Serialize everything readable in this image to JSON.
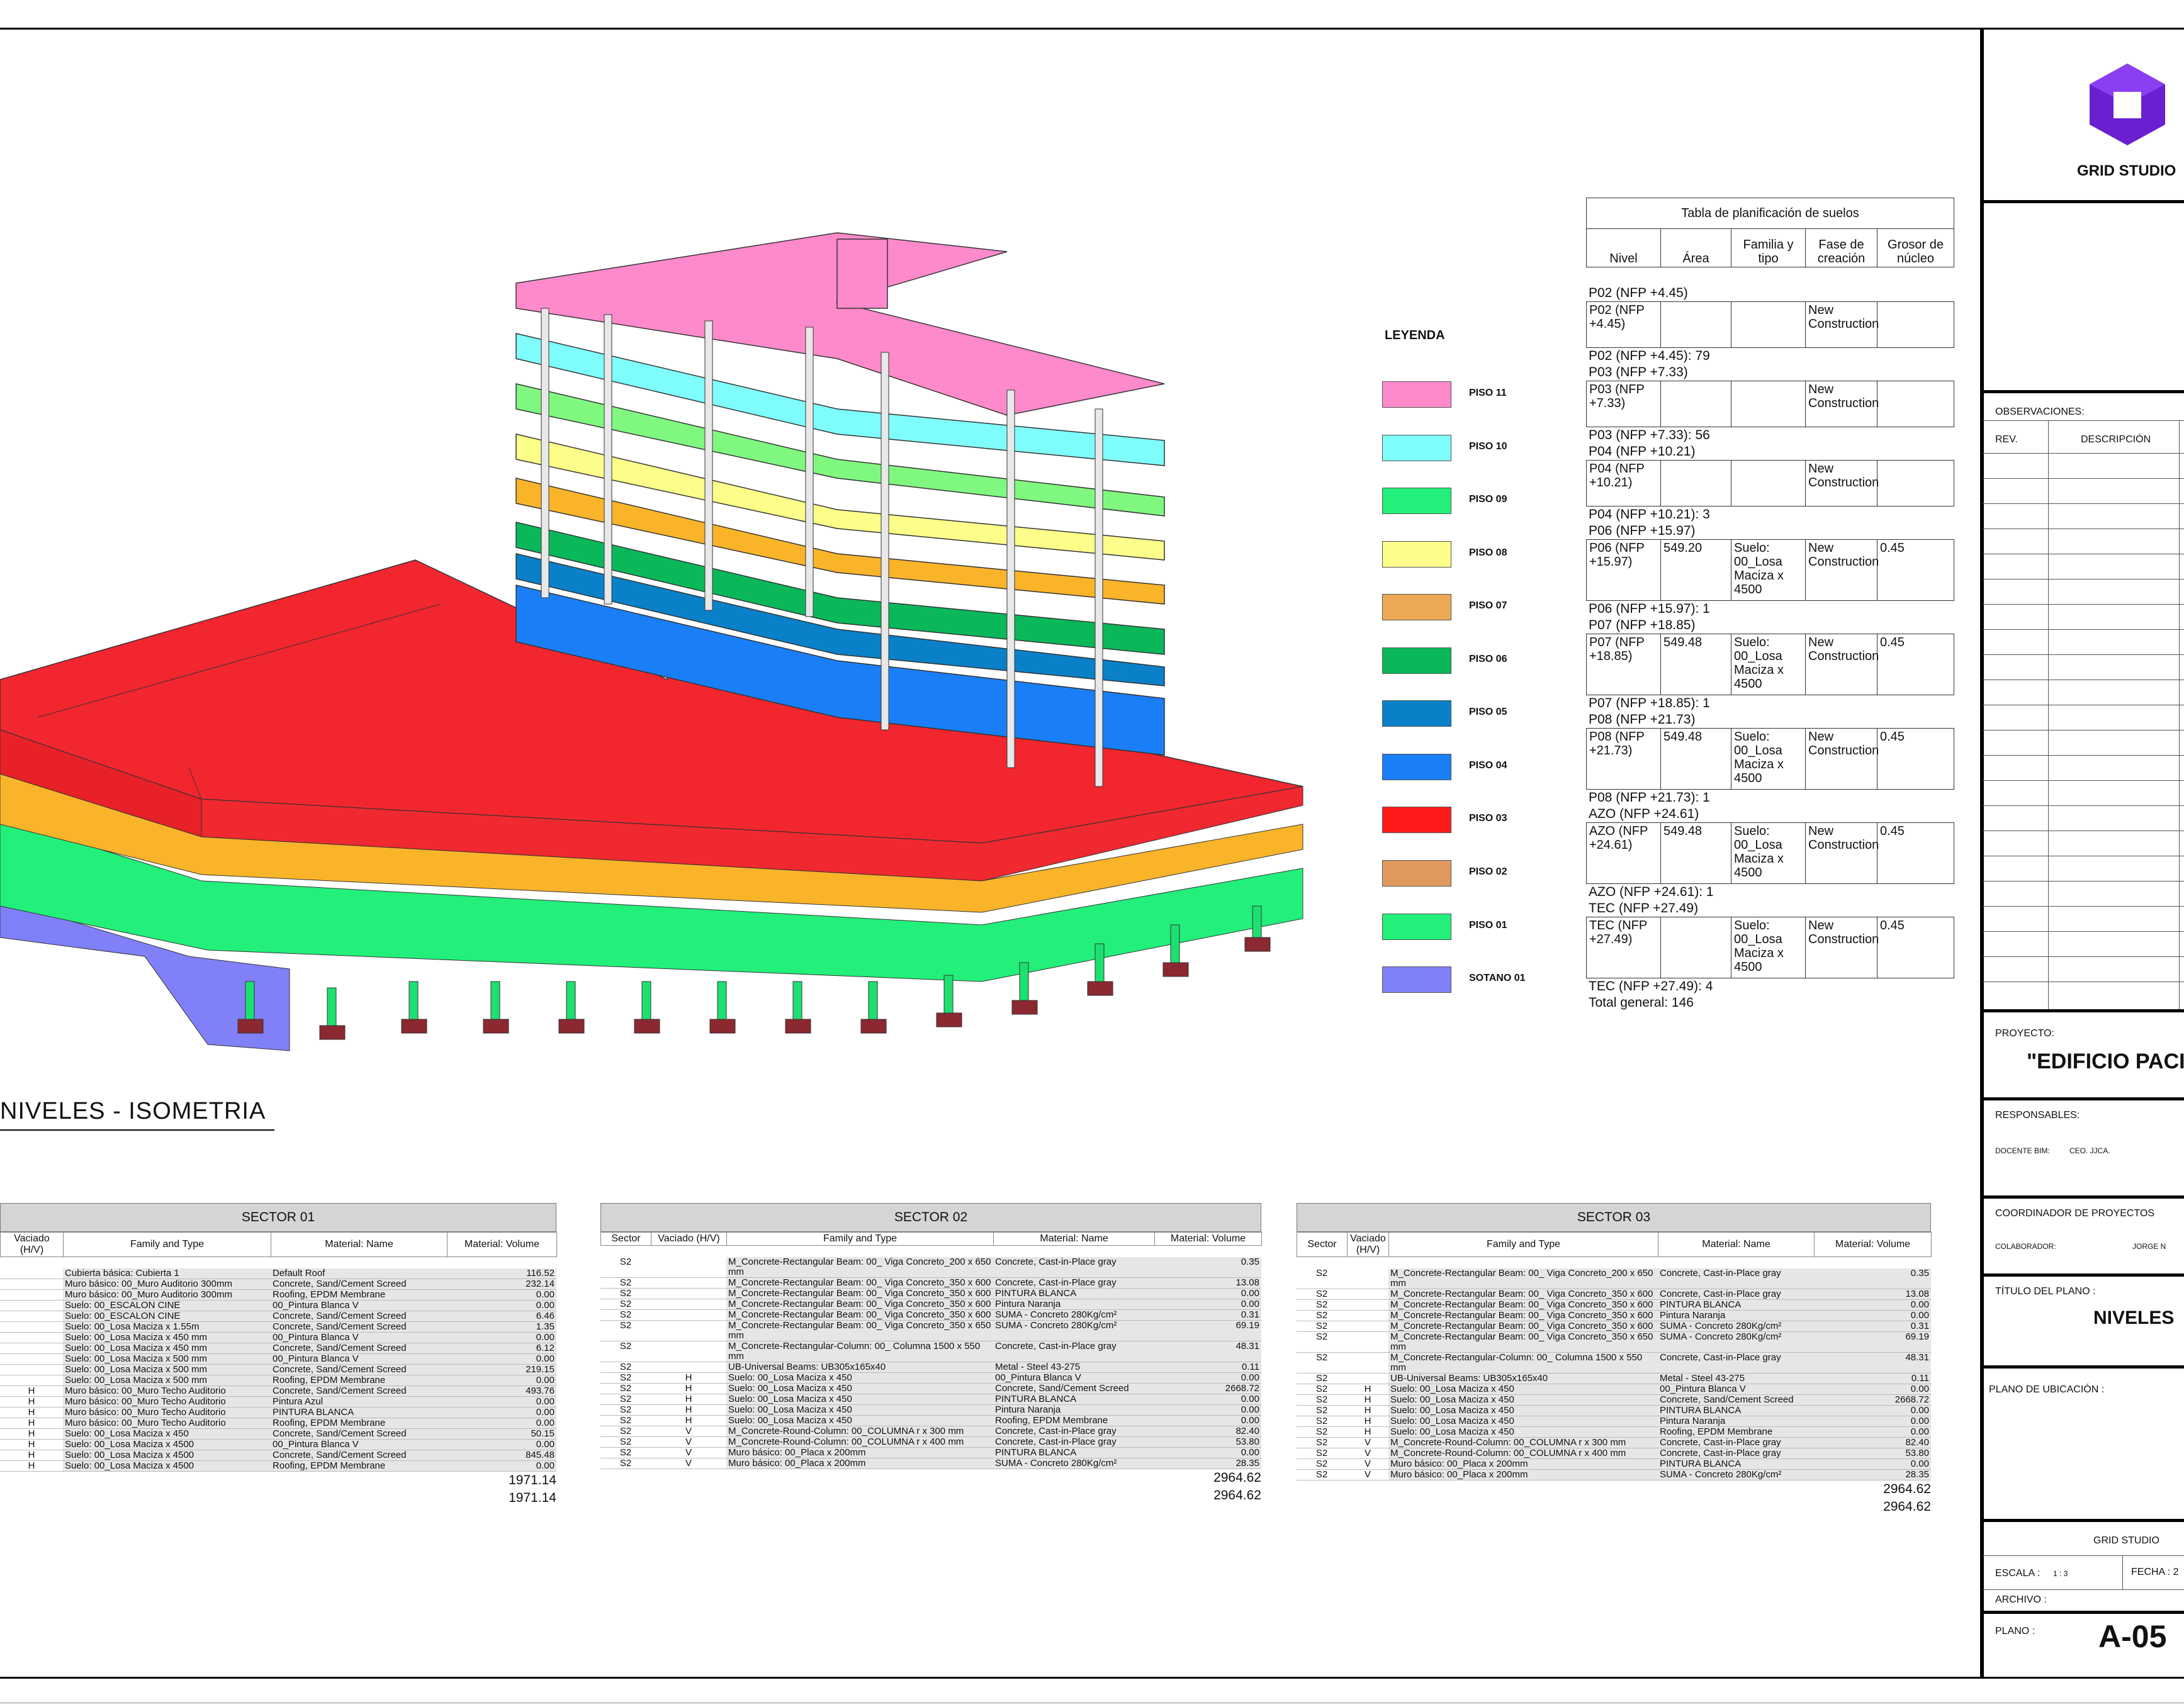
{
  "drawing_title": "NIVELES - ISOMETRIA",
  "legend": {
    "title": "LEYENDA",
    "items": [
      {
        "label": "PISO 11",
        "color": "#ff8acb"
      },
      {
        "label": "PISO 10",
        "color": "#7ffdfd"
      },
      {
        "label": "PISO 09",
        "color": "#22f07a"
      },
      {
        "label": "PISO 08",
        "color": "#fdfd8a"
      },
      {
        "label": "PISO 07",
        "color": "#ecaa55"
      },
      {
        "label": "PISO 06",
        "color": "#0ab85a"
      },
      {
        "label": "PISO 05",
        "color": "#0a80c8"
      },
      {
        "label": "PISO 04",
        "color": "#1a7ff6"
      },
      {
        "label": "PISO 03",
        "color": "#ff1a1a"
      },
      {
        "label": "PISO 02",
        "color": "#e09a5e"
      },
      {
        "label": "PISO 01",
        "color": "#22f07a"
      },
      {
        "label": "SOTANO 01",
        "color": "#8080f8"
      }
    ]
  },
  "floor_table": {
    "title": "Tabla de planificación de suelos",
    "headers": [
      "Nivel",
      "Área",
      "Familia y tipo",
      "Fase de creación",
      "Grosor de núcleo"
    ],
    "groups": [
      {
        "group": "P02 (NFP +4.45)",
        "row": [
          "P02 (NFP +4.45)",
          "",
          "",
          "New Construction",
          ""
        ],
        "footer": "P02 (NFP +4.45): 79"
      },
      {
        "group": "P03 (NFP +7.33)",
        "row": [
          "P03 (NFP +7.33)",
          "",
          "",
          "New Construction",
          ""
        ],
        "footer": "P03 (NFP +7.33): 56"
      },
      {
        "group": "P04 (NFP +10.21)",
        "row": [
          "P04 (NFP +10.21)",
          "",
          "",
          "New Construction",
          ""
        ],
        "footer": "P04 (NFP +10.21): 3"
      },
      {
        "group": "P06 (NFP +15.97)",
        "row": [
          "P06 (NFP +15.97)",
          "549.20",
          "Suelo: 00_Losa Maciza x 4500",
          "New Construction",
          "0.45"
        ],
        "footer": "P06 (NFP +15.97): 1"
      },
      {
        "group": "P07 (NFP +18.85)",
        "row": [
          "P07 (NFP +18.85)",
          "549.48",
          "Suelo: 00_Losa Maciza x 4500",
          "New Construction",
          "0.45"
        ],
        "footer": "P07 (NFP +18.85): 1"
      },
      {
        "group": "P08 (NFP +21.73)",
        "row": [
          "P08 (NFP +21.73)",
          "549.48",
          "Suelo: 00_Losa Maciza x 4500",
          "New Construction",
          "0.45"
        ],
        "footer": "P08 (NFP +21.73): 1"
      },
      {
        "group": "AZO (NFP +24.61)",
        "row": [
          "AZO (NFP +24.61)",
          "549.48",
          "Suelo: 00_Losa Maciza x 4500",
          "New Construction",
          "0.45"
        ],
        "footer": "AZO (NFP +24.61): 1"
      },
      {
        "group": "TEC (NFP +27.49)",
        "row": [
          "TEC (NFP +27.49)",
          "",
          "Suelo: 00_Losa Maciza x 4500",
          "New Construction",
          "0.45"
        ],
        "footer": "TEC (NFP +27.49): 4"
      }
    ],
    "total": "Total general: 146"
  },
  "sector01": {
    "title": "SECTOR 01",
    "headers": [
      "Vaciado (H/V)",
      "Family and Type",
      "Material: Name",
      "Material: Volume"
    ],
    "rows": [
      [
        "",
        "Cubierta básica: Cubierta 1",
        "Default Roof",
        "116.52"
      ],
      [
        "",
        "Muro básico: 00_Muro Auditorio 300mm",
        "Concrete, Sand/Cement Screed",
        "232.14"
      ],
      [
        "",
        "Muro básico: 00_Muro Auditorio 300mm",
        "Roofing, EPDM Membrane",
        "0.00"
      ],
      [
        "",
        "Suelo: 00_ESCALON CINE",
        "00_Pintura Blanca V",
        "0.00"
      ],
      [
        "",
        "Suelo: 00_ESCALON CINE",
        "Concrete, Sand/Cement Screed",
        "6.46"
      ],
      [
        "",
        "Suelo: 00_Losa Maciza x 1.55m",
        "Concrete, Sand/Cement Screed",
        "1.35"
      ],
      [
        "",
        "Suelo: 00_Losa Maciza x 450 mm",
        "00_Pintura Blanca V",
        "0.00"
      ],
      [
        "",
        "Suelo: 00_Losa Maciza x 450 mm",
        "Concrete, Sand/Cement Screed",
        "6.12"
      ],
      [
        "",
        "Suelo: 00_Losa Maciza x 500 mm",
        "00_Pintura Blanca V",
        "0.00"
      ],
      [
        "",
        "Suelo: 00_Losa Maciza x 500 mm",
        "Concrete, Sand/Cement Screed",
        "219.15"
      ],
      [
        "",
        "Suelo: 00_Losa Maciza x 500 mm",
        "Roofing, EPDM Membrane",
        "0.00"
      ],
      [
        "H",
        "Muro básico: 00_Muro Techo Auditorio",
        "Concrete, Sand/Cement Screed",
        "493.76"
      ],
      [
        "H",
        "Muro básico: 00_Muro Techo Auditorio",
        "Pintura Azul",
        "0.00"
      ],
      [
        "H",
        "Muro básico: 00_Muro Techo Auditorio",
        "PINTURA BLANCA",
        "0.00"
      ],
      [
        "H",
        "Muro básico: 00_Muro Techo Auditorio",
        "Roofing, EPDM Membrane",
        "0.00"
      ],
      [
        "H",
        "Suelo: 00_Losa Maciza x 450",
        "Concrete, Sand/Cement Screed",
        "50.15"
      ],
      [
        "H",
        "Suelo: 00_Losa Maciza x 4500",
        "00_Pintura Blanca V",
        "0.00"
      ],
      [
        "H",
        "Suelo: 00_Losa Maciza x 4500",
        "Concrete, Sand/Cement Screed",
        "845.48"
      ],
      [
        "H",
        "Suelo: 00_Losa Maciza x 4500",
        "Roofing, EPDM Membrane",
        "0.00"
      ]
    ],
    "total1": "1971.14",
    "total2": "1971.14"
  },
  "sector02": {
    "title": "SECTOR 02",
    "headers": [
      "Sector",
      "Vaciado (H/V)",
      "Family and Type",
      "Material: Name",
      "Material: Volume"
    ],
    "rows": [
      [
        "S2",
        "",
        "M_Concrete-Rectangular Beam: 00_ Viga Concreto_200 x 650 mm",
        "Concrete, Cast-in-Place gray",
        "0.35"
      ],
      [
        "S2",
        "",
        "M_Concrete-Rectangular Beam: 00_ Viga Concreto_350 x 600",
        "Concrete, Cast-in-Place gray",
        "13.08"
      ],
      [
        "S2",
        "",
        "M_Concrete-Rectangular Beam: 00_ Viga Concreto_350 x 600",
        "PINTURA BLANCA",
        "0.00"
      ],
      [
        "S2",
        "",
        "M_Concrete-Rectangular Beam: 00_ Viga Concreto_350 x 600",
        "Pintura Naranja",
        "0.00"
      ],
      [
        "S2",
        "",
        "M_Concrete-Rectangular Beam: 00_ Viga Concreto_350 x 600",
        "SUMA - Concreto 280Kg/cm²",
        "0.31"
      ],
      [
        "S2",
        "",
        "M_Concrete-Rectangular Beam: 00_ Viga Concreto_350 x 650 mm",
        "SUMA - Concreto 280Kg/cm²",
        "69.19"
      ],
      [
        "S2",
        "",
        "M_Concrete-Rectangular-Column: 00_ Columna 1500 x 550 mm",
        "Concrete, Cast-in-Place gray",
        "48.31"
      ],
      [
        "S2",
        "",
        "UB-Universal Beams: UB305x165x40",
        "Metal - Steel 43-275",
        "0.11"
      ],
      [
        "S2",
        "H",
        "Suelo: 00_Losa Maciza x 450",
        "00_Pintura Blanca V",
        "0.00"
      ],
      [
        "S2",
        "H",
        "Suelo: 00_Losa Maciza x 450",
        "Concrete, Sand/Cement Screed",
        "2668.72"
      ],
      [
        "S2",
        "H",
        "Suelo: 00_Losa Maciza x 450",
        "PINTURA BLANCA",
        "0.00"
      ],
      [
        "S2",
        "H",
        "Suelo: 00_Losa Maciza x 450",
        "Pintura Naranja",
        "0.00"
      ],
      [
        "S2",
        "H",
        "Suelo: 00_Losa Maciza x 450",
        "Roofing, EPDM Membrane",
        "0.00"
      ],
      [
        "S2",
        "V",
        "M_Concrete-Round-Column: 00_COLUMNA r x 300 mm",
        "Concrete, Cast-in-Place gray",
        "82.40"
      ],
      [
        "S2",
        "V",
        "M_Concrete-Round-Column: 00_COLUMNA r x 400 mm",
        "Concrete, Cast-in-Place gray",
        "53.80"
      ],
      [
        "S2",
        "V",
        "Muro básico: 00_Placa x 200mm",
        "PINTURA BLANCA",
        "0.00"
      ],
      [
        "S2",
        "V",
        "Muro básico: 00_Placa x 200mm",
        "SUMA - Concreto 280Kg/cm²",
        "28.35"
      ]
    ],
    "total1": "2964.62",
    "total2": "2964.62"
  },
  "sector03": {
    "title": "SECTOR 03",
    "headers": [
      "Sector",
      "Vaciado (H/V)",
      "Family and Type",
      "Material: Name",
      "Material: Volume"
    ],
    "rows": [
      [
        "S2",
        "",
        "M_Concrete-Rectangular Beam: 00_ Viga Concreto_200 x 650 mm",
        "Concrete, Cast-in-Place gray",
        "0.35"
      ],
      [
        "S2",
        "",
        "M_Concrete-Rectangular Beam: 00_ Viga Concreto_350 x 600",
        "Concrete, Cast-in-Place gray",
        "13.08"
      ],
      [
        "S2",
        "",
        "M_Concrete-Rectangular Beam: 00_ Viga Concreto_350 x 600",
        "PINTURA BLANCA",
        "0.00"
      ],
      [
        "S2",
        "",
        "M_Concrete-Rectangular Beam: 00_ Viga Concreto_350 x 600",
        "Pintura Naranja",
        "0.00"
      ],
      [
        "S2",
        "",
        "M_Concrete-Rectangular Beam: 00_ Viga Concreto_350 x 600",
        "SUMA - Concreto 280Kg/cm²",
        "0.31"
      ],
      [
        "S2",
        "",
        "M_Concrete-Rectangular Beam: 00_ Viga Concreto_350 x 650 mm",
        "SUMA - Concreto 280Kg/cm²",
        "69.19"
      ],
      [
        "S2",
        "",
        "M_Concrete-Rectangular-Column: 00_ Columna 1500 x 550 mm",
        "Concrete, Cast-in-Place gray",
        "48.31"
      ],
      [
        "S2",
        "",
        "UB-Universal Beams: UB305x165x40",
        "Metal - Steel 43-275",
        "0.11"
      ],
      [
        "S2",
        "H",
        "Suelo: 00_Losa Maciza x 450",
        "00_Pintura Blanca V",
        "0.00"
      ],
      [
        "S2",
        "H",
        "Suelo: 00_Losa Maciza x 450",
        "Concrete, Sand/Cement Screed",
        "2668.72"
      ],
      [
        "S2",
        "H",
        "Suelo: 00_Losa Maciza x 450",
        "PINTURA BLANCA",
        "0.00"
      ],
      [
        "S2",
        "H",
        "Suelo: 00_Losa Maciza x 450",
        "Pintura Naranja",
        "0.00"
      ],
      [
        "S2",
        "H",
        "Suelo: 00_Losa Maciza x 450",
        "Roofing, EPDM Membrane",
        "0.00"
      ],
      [
        "S2",
        "V",
        "M_Concrete-Round-Column: 00_COLUMNA r x 300 mm",
        "Concrete, Cast-in-Place gray",
        "82.40"
      ],
      [
        "S2",
        "V",
        "M_Concrete-Round-Column: 00_COLUMNA r x 400 mm",
        "Concrete, Cast-in-Place gray",
        "53.80"
      ],
      [
        "S2",
        "V",
        "Muro básico: 00_Placa x 200mm",
        "PINTURA BLANCA",
        "0.00"
      ],
      [
        "S2",
        "V",
        "Muro básico: 00_Placa x 200mm",
        "SUMA - Concreto 280Kg/cm²",
        "28.35"
      ]
    ],
    "total1": "2964.62",
    "total2": "2964.62"
  },
  "title_block": {
    "company": "GRID STUDIO",
    "logo_color": "#6a1fd0",
    "observaciones": "OBSERVACIONES:",
    "rev": "REV.",
    "descripcion": "DESCRIPCIÓN",
    "proyecto_label": "PROYECTO:",
    "proyecto": "\"EDIFICIO PACI",
    "responsables": "RESPONSABLES:",
    "docente_label": "DOCENTE BIM:",
    "docente": "CEO. JJCA.",
    "coordinador": "COORDINADOR DE PROYECTOS",
    "colaborador_label": "COLABORADOR:",
    "colaborador": "JORGE N",
    "titulo_label": "TÍTULO DEL PLANO :",
    "titulo": "NIVELES",
    "ubicacion": "PLANO DE UBICACIÓN :",
    "studio": "GRID STUDIO",
    "escala_label": "ESCALA :",
    "escala": "1 : 3",
    "fecha": "FECHA : 2",
    "archivo": "ARCHIVO :",
    "plano_label": "PLANO :",
    "plano": "A-05"
  }
}
